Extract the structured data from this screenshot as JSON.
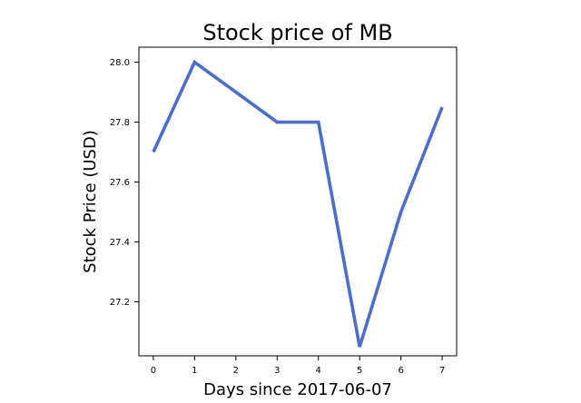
{
  "chart_data": {
    "type": "line",
    "title": "Stock price of MB",
    "xlabel": "Days since 2017-06-07",
    "ylabel": "Stock Price (USD)",
    "xlim": [
      -0.35,
      7.35
    ],
    "ylim": [
      27.02,
      28.05
    ],
    "xticks": [
      0,
      1,
      2,
      3,
      4,
      5,
      6,
      7
    ],
    "yticks": [
      27.2,
      27.4,
      27.6,
      27.8,
      28.0
    ],
    "ytick_labels": [
      "27.2",
      "27.4",
      "27.6",
      "27.8",
      "28.0"
    ],
    "grid": false,
    "series": [
      {
        "x": [
          0,
          1,
          2,
          3,
          4,
          5,
          6,
          7
        ],
        "values": [
          27.7,
          28.0,
          27.9,
          27.8,
          27.8,
          27.05,
          27.5,
          27.85
        ],
        "color": "#4c6dc9"
      }
    ]
  }
}
